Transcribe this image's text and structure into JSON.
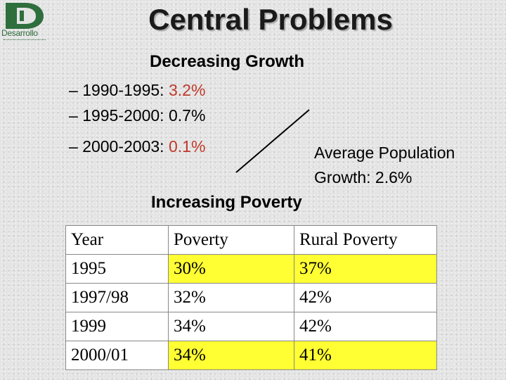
{
  "logo": {
    "text": "Desarrollo",
    "color": "#2f6e3d"
  },
  "title": "Central Problems",
  "growth": {
    "heading": "Decreasing Growth",
    "items": [
      {
        "dash": "–",
        "period": "1990-1995:",
        "value": "3.2%"
      },
      {
        "dash": "–",
        "period": "1995-2000:",
        "value": "0.7%"
      },
      {
        "dash": "–",
        "period": "2000-2003:",
        "value": "0.1%"
      }
    ],
    "highlight_color": "#c0392b"
  },
  "population": {
    "line1": "Average Population",
    "line2": "Growth: 2.6%"
  },
  "poverty": {
    "heading": "Increasing Poverty"
  },
  "table": {
    "headers": [
      "Year",
      "Poverty",
      "Rural Poverty"
    ],
    "rows": [
      [
        "1995",
        "30%",
        "37%"
      ],
      [
        "1997/98",
        "32%",
        "42%"
      ],
      [
        "1999",
        "34%",
        "42%"
      ],
      [
        "2000/01",
        "34%",
        "41%"
      ]
    ],
    "highlight_color": "#ffff33"
  }
}
